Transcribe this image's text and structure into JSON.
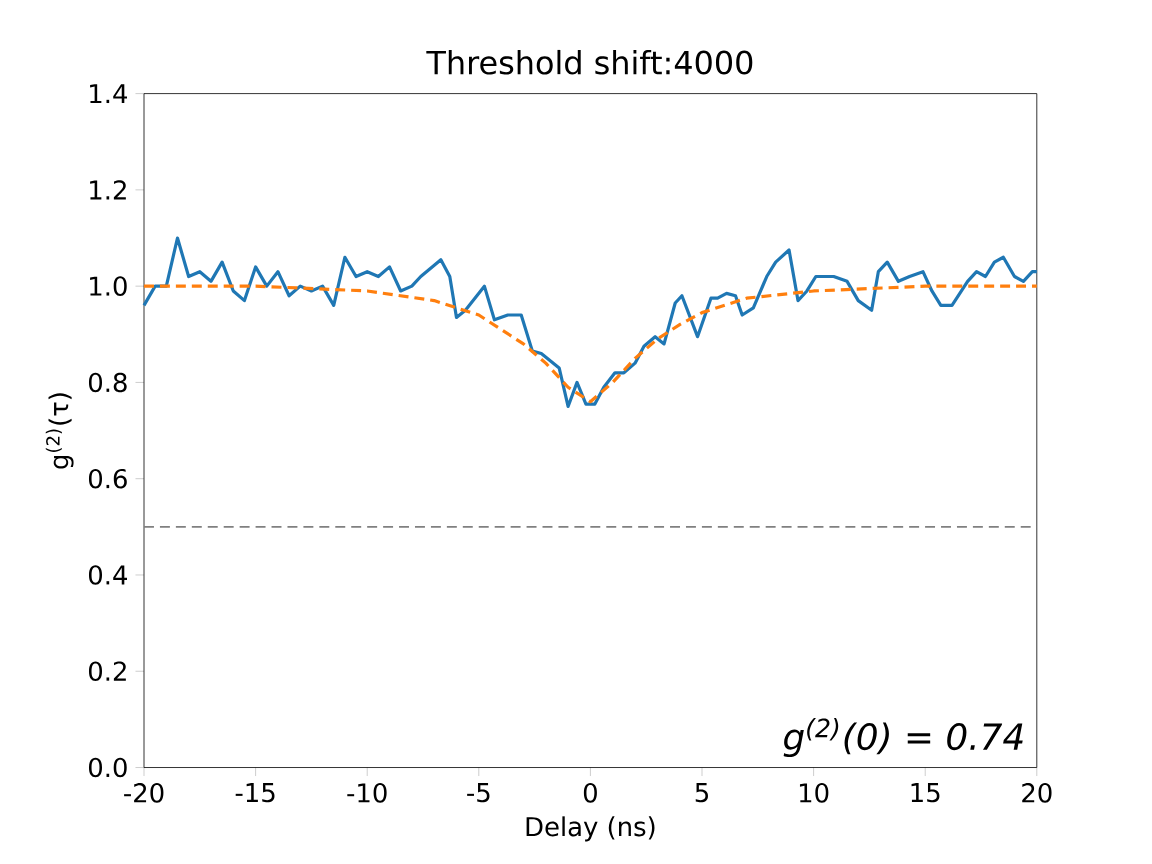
{
  "chart_data": {
    "type": "line",
    "title": "Threshold shift:4000",
    "xlabel": "Delay (ns)",
    "ylabel": "g$^{(2)}$(τ)",
    "xlim": [
      -20,
      20
    ],
    "xticks": [
      -20,
      -15,
      -10,
      -5,
      0,
      5,
      10,
      15,
      20
    ],
    "ylim": [
      0,
      1.4
    ],
    "yticks": [
      {
        "value": 0,
        "label": "0.0"
      },
      {
        "value": 0.2,
        "label": "0.2"
      },
      {
        "value": 0.4,
        "label": "0.4"
      },
      {
        "value": 0.6,
        "label": "0.6"
      },
      {
        "value": 0.8,
        "label": "0.8"
      },
      {
        "value": 1,
        "label": "1.0"
      },
      {
        "value": 1.2,
        "label": "1.2"
      },
      {
        "value": 1.4,
        "label": "1.4"
      }
    ],
    "series": [
      {
        "color": "#1f77b4",
        "line_style": "solid",
        "x": [
          -20,
          -19.5,
          -19,
          -18.5,
          -18,
          -17.5,
          -17,
          -16.5,
          -16,
          -15.5,
          -15,
          -14.5,
          -14,
          -13.5,
          -13,
          -12.5,
          -12,
          -11.5,
          -11,
          -10.5,
          -10,
          -9.5,
          -9,
          -8.5,
          -8,
          -7.6,
          -6.7,
          -6.3,
          -6.0,
          -5.6,
          -4.75,
          -4.3,
          -3.7,
          -3.1,
          -2.6,
          -2.2,
          -1.4,
          -1.0,
          -0.6,
          -0.2,
          0.2,
          0.6,
          1.1,
          1.5,
          2.0,
          2.4,
          2.9,
          3.3,
          3.8,
          4.1,
          4.8,
          5.4,
          5.7,
          6.1,
          6.5,
          6.8,
          7.3,
          7.9,
          8.3,
          8.9,
          9.3,
          9.7,
          10.1,
          10.9,
          11.5,
          12.0,
          12.6,
          12.9,
          13.3,
          13.8,
          14.3,
          14.9,
          15.3,
          15.7,
          16.2,
          16.9,
          17.3,
          17.7,
          18.1,
          18.5,
          19.0,
          19.4,
          19.8,
          20
        ],
        "values": [
          0.96,
          1.0,
          1.0,
          1.1,
          1.02,
          1.03,
          1.01,
          1.05,
          0.99,
          0.97,
          1.04,
          1.0,
          1.03,
          0.98,
          1.0,
          0.99,
          1.0,
          0.96,
          1.06,
          1.02,
          1.03,
          1.02,
          1.04,
          0.99,
          1.0,
          1.02,
          1.055,
          1.02,
          0.935,
          0.95,
          1.0,
          0.93,
          0.94,
          0.94,
          0.865,
          0.86,
          0.83,
          0.75,
          0.8,
          0.755,
          0.755,
          0.79,
          0.82,
          0.82,
          0.84,
          0.875,
          0.895,
          0.88,
          0.965,
          0.98,
          0.895,
          0.975,
          0.975,
          0.985,
          0.98,
          0.94,
          0.955,
          1.02,
          1.05,
          1.075,
          0.97,
          0.99,
          1.02,
          1.02,
          1.01,
          0.97,
          0.95,
          1.03,
          1.05,
          1.01,
          1.02,
          1.03,
          0.99,
          0.96,
          0.96,
          1.01,
          1.03,
          1.02,
          1.05,
          1.06,
          1.02,
          1.01,
          1.03,
          1.03
        ]
      },
      {
        "color": "#ff7f0e",
        "line_style": "dashed",
        "x": [
          -20,
          -15,
          -10,
          -7,
          -5,
          -4,
          -3,
          -2,
          -1,
          0,
          1,
          2,
          3,
          4,
          5,
          7,
          10,
          15,
          20
        ],
        "values": [
          1.0,
          1.0,
          0.99,
          0.97,
          0.94,
          0.91,
          0.88,
          0.84,
          0.79,
          0.76,
          0.8,
          0.85,
          0.89,
          0.92,
          0.945,
          0.975,
          0.99,
          1.0,
          1.0
        ]
      }
    ],
    "ref_lines": [
      {
        "axis": "y",
        "value": 0.5,
        "color": "#808080",
        "line_style": "dashed"
      }
    ],
    "annotations": [
      "g$^{(2)}$(0) = 0.74"
    ]
  }
}
